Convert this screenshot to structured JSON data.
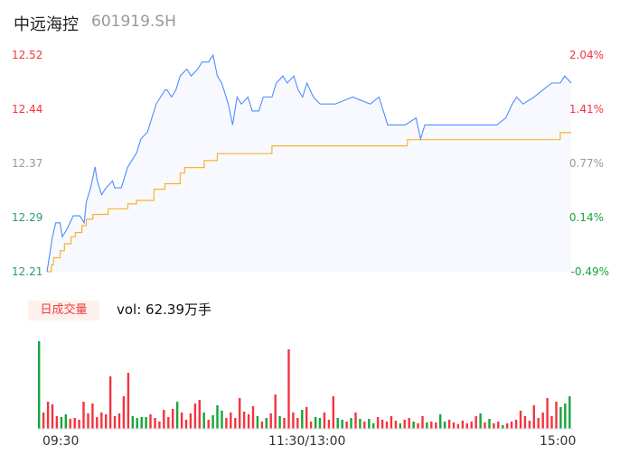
{
  "header": {
    "name": "中远海控",
    "code": "601919.SH"
  },
  "volume_label": {
    "badge": "日成交量",
    "vol": "vol: 62.39万手"
  },
  "colors": {
    "price": "#4f8cff",
    "avg": "#f5b52a",
    "up": "#f5333f",
    "down": "#16a53c",
    "fill": "#f8f9fe"
  },
  "chart_data": {
    "type": "line",
    "title": "中远海控 601919.SH",
    "ylim": [
      12.21,
      12.52
    ],
    "left_ticks": [
      {
        "v": "12.52",
        "c": "#f5333f"
      },
      {
        "v": "12.44",
        "c": "#f5333f"
      },
      {
        "v": "12.37",
        "c": "#999999"
      },
      {
        "v": "12.29",
        "c": "#2a9d6b"
      },
      {
        "v": "12.21",
        "c": "#2a9d6b"
      }
    ],
    "right_ticks": [
      {
        "v": "2.04%",
        "c": "#f5333f"
      },
      {
        "v": "1.41%",
        "c": "#f5333f"
      },
      {
        "v": "0.77%",
        "c": "#999999"
      },
      {
        "v": "0.14%",
        "c": "#16a53c"
      },
      {
        "v": "-0.49%",
        "c": "#16a53c"
      }
    ],
    "x_ticks": [
      "09:30",
      "11:30/13:00",
      "15:00"
    ],
    "minutes_total": 240,
    "price": [
      [
        0,
        12.21
      ],
      [
        2.5,
        12.26
      ],
      [
        4,
        12.28
      ],
      [
        6,
        12.28
      ],
      [
        7,
        12.26
      ],
      [
        9,
        12.27
      ],
      [
        12,
        12.29
      ],
      [
        15,
        12.29
      ],
      [
        17,
        12.28
      ],
      [
        18,
        12.31
      ],
      [
        20,
        12.33
      ],
      [
        22,
        12.36
      ],
      [
        23,
        12.34
      ],
      [
        25,
        12.32
      ],
      [
        27,
        12.33
      ],
      [
        30,
        12.34
      ],
      [
        31,
        12.33
      ],
      [
        34,
        12.33
      ],
      [
        37,
        12.36
      ],
      [
        41,
        12.38
      ],
      [
        43,
        12.4
      ],
      [
        46,
        12.41
      ],
      [
        48,
        12.43
      ],
      [
        50,
        12.45
      ],
      [
        52,
        12.46
      ],
      [
        54,
        12.47
      ],
      [
        55,
        12.47
      ],
      [
        57,
        12.46
      ],
      [
        59,
        12.47
      ],
      [
        61,
        12.49
      ],
      [
        64,
        12.5
      ],
      [
        66,
        12.49
      ],
      [
        69,
        12.5
      ],
      [
        71,
        12.51
      ],
      [
        74,
        12.51
      ],
      [
        76,
        12.52
      ],
      [
        78,
        12.49
      ],
      [
        80,
        12.48
      ],
      [
        83,
        12.45
      ],
      [
        85,
        12.42
      ],
      [
        87,
        12.46
      ],
      [
        89,
        12.45
      ],
      [
        92,
        12.46
      ],
      [
        94,
        12.44
      ],
      [
        97,
        12.44
      ],
      [
        99,
        12.46
      ],
      [
        103,
        12.46
      ],
      [
        105,
        12.48
      ],
      [
        108,
        12.49
      ],
      [
        110,
        12.48
      ],
      [
        113,
        12.49
      ],
      [
        115,
        12.47
      ],
      [
        117,
        12.46
      ],
      [
        119,
        12.48
      ],
      [
        122,
        12.46
      ],
      [
        125,
        12.45
      ],
      [
        132,
        12.45
      ],
      [
        140,
        12.46
      ],
      [
        148,
        12.45
      ],
      [
        152,
        12.46
      ],
      [
        156,
        12.42
      ],
      [
        161,
        12.42
      ],
      [
        164,
        12.42
      ],
      [
        169,
        12.43
      ],
      [
        171,
        12.4
      ],
      [
        173,
        12.42
      ],
      [
        181,
        12.42
      ],
      [
        189,
        12.42
      ],
      [
        194,
        12.42
      ],
      [
        202,
        12.42
      ],
      [
        206,
        12.42
      ],
      [
        210,
        12.43
      ],
      [
        213,
        12.45
      ],
      [
        215,
        12.46
      ],
      [
        218,
        12.45
      ],
      [
        223,
        12.46
      ],
      [
        227,
        12.47
      ],
      [
        231,
        12.48
      ],
      [
        235,
        12.48
      ],
      [
        237,
        12.49
      ],
      [
        240,
        12.48
      ]
    ],
    "avg": [
      [
        0,
        12.21
      ],
      [
        2,
        12.22
      ],
      [
        3,
        12.23
      ],
      [
        6,
        12.24
      ],
      [
        8,
        12.25
      ],
      [
        11,
        12.26
      ],
      [
        13,
        12.266
      ],
      [
        16,
        12.276
      ],
      [
        18,
        12.285
      ],
      [
        21,
        12.292
      ],
      [
        28,
        12.3
      ],
      [
        37,
        12.307
      ],
      [
        41,
        12.312
      ],
      [
        49,
        12.328
      ],
      [
        54,
        12.336
      ],
      [
        61,
        12.351
      ],
      [
        63,
        12.359
      ],
      [
        72,
        12.369
      ],
      [
        78,
        12.379
      ],
      [
        103,
        12.39
      ],
      [
        165,
        12.399
      ],
      [
        235,
        12.409
      ],
      [
        240,
        12.409
      ]
    ],
    "volume": [
      97,
      18,
      30,
      27,
      14,
      13,
      16,
      11,
      12,
      10,
      30,
      17,
      28,
      13,
      18,
      16,
      58,
      14,
      17,
      36,
      62,
      14,
      12,
      13,
      13,
      16,
      12,
      8,
      21,
      13,
      22,
      30,
      18,
      10,
      17,
      28,
      32,
      18,
      10,
      15,
      26,
      20,
      12,
      18,
      12,
      34,
      19,
      16,
      25,
      14,
      8,
      12,
      17,
      38,
      14,
      12,
      88,
      18,
      12,
      21,
      24,
      8,
      13,
      12,
      18,
      10,
      36,
      12,
      10,
      8,
      12,
      18,
      11,
      8,
      11,
      6,
      13,
      10,
      8,
      14,
      9,
      6,
      10,
      12,
      8,
      6,
      14,
      7,
      8,
      7,
      16,
      8,
      10,
      7,
      5,
      9,
      6,
      8,
      14,
      17,
      7,
      11,
      6,
      8,
      4,
      6,
      8,
      10,
      20,
      14,
      9,
      26,
      12,
      18,
      34,
      14,
      30,
      24,
      28,
      36
    ],
    "volume_dir": "grrrrggrrrrrrrrrrrrrrggggrrrrrrgrrrrrgrgggrrrrrrrgrgrrgrrrrgrrggrrrggrgrgrggrrrrrgrrgrrgrrggrrrrrrrgmgrrgrrrrrrrrrrrrgggr"
  }
}
